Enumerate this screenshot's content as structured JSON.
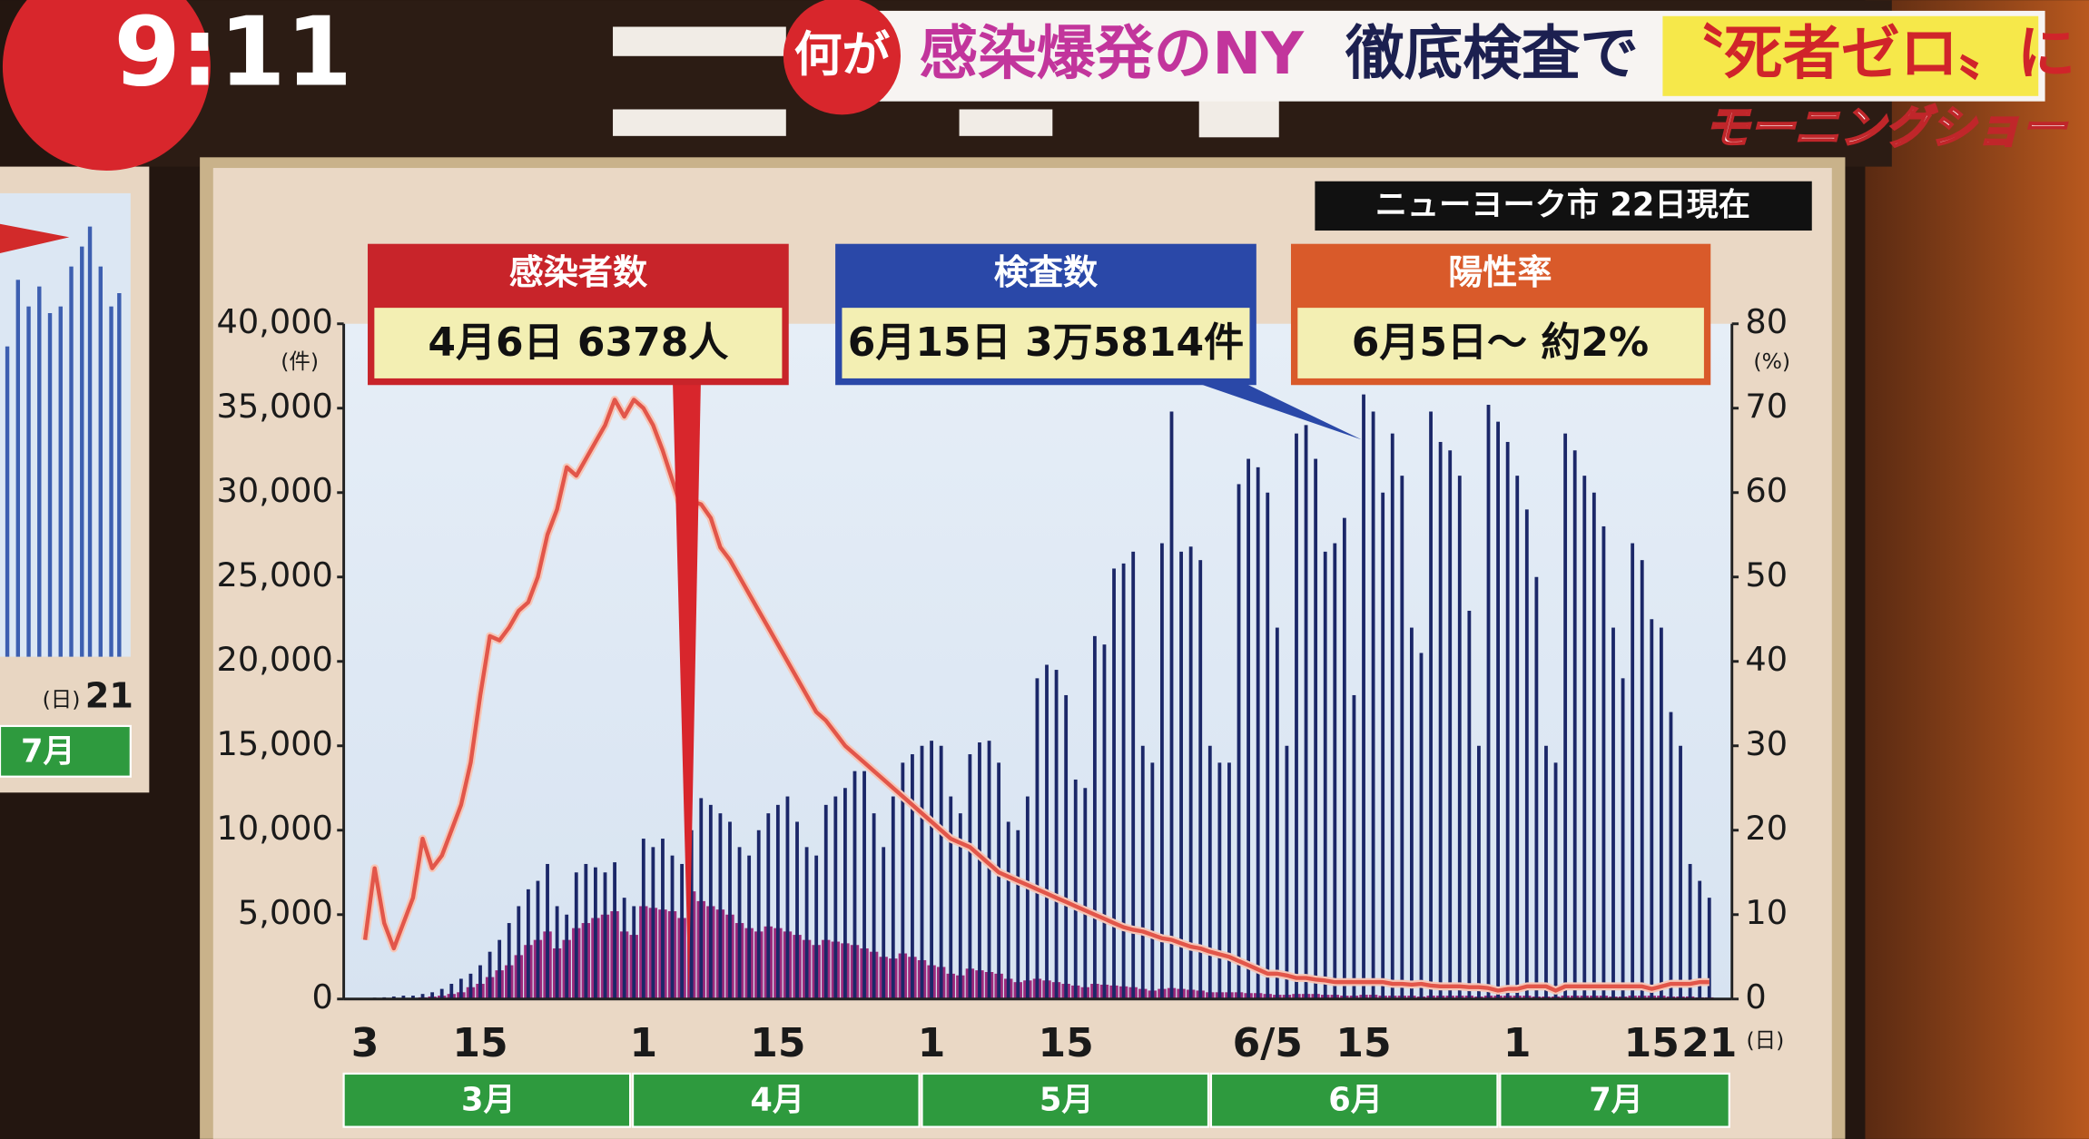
{
  "header": {
    "clock": "9:11",
    "badge": "何が",
    "headline": [
      "感染爆発のNY",
      "徹底検査で",
      "〝死者ゼロ〟に"
    ],
    "show": "モーニングショー"
  },
  "side_panel": {
    "x_unit": "(日)",
    "tick": "21",
    "month": "7月"
  },
  "chart_data": {
    "type": "bar",
    "source_note": "ニューヨーク市 22日現在",
    "y_unit": "(件)",
    "y2_unit": "(%)",
    "x_unit": "(日)",
    "categories": [
      "3",
      null,
      null,
      null,
      null,
      null,
      null,
      null,
      null,
      null,
      null,
      null,
      "15",
      null,
      null,
      null,
      null,
      null,
      null,
      null,
      null,
      null,
      null,
      null,
      null,
      null,
      null,
      null,
      null,
      "1",
      null,
      null,
      null,
      null,
      null,
      null,
      null,
      null,
      null,
      null,
      null,
      null,
      null,
      "15",
      null,
      null,
      null,
      null,
      null,
      null,
      null,
      null,
      null,
      null,
      null,
      null,
      null,
      null,
      null,
      "1",
      null,
      null,
      null,
      null,
      null,
      null,
      null,
      null,
      null,
      null,
      null,
      null,
      null,
      "15",
      null,
      null,
      null,
      null,
      null,
      null,
      null,
      null,
      null,
      null,
      null,
      null,
      null,
      null,
      null,
      null,
      null,
      null,
      null,
      null,
      "6/5",
      null,
      null,
      null,
      null,
      null,
      null,
      null,
      null,
      null,
      "15",
      null,
      null,
      null,
      null,
      null,
      null,
      null,
      null,
      null,
      null,
      null,
      null,
      null,
      null,
      null,
      "1",
      null,
      null,
      null,
      null,
      null,
      null,
      null,
      null,
      null,
      null,
      null,
      null,
      null,
      "15",
      null,
      null,
      null,
      null,
      null,
      "21"
    ],
    "month_labels": [
      "3月",
      "4月",
      "5月",
      "6月",
      "7月"
    ],
    "series": [
      {
        "name": "検査数",
        "type": "bar",
        "color": "#1b2768",
        "values": [
          50,
          80,
          100,
          150,
          200,
          200,
          300,
          400,
          600,
          900,
          1200,
          1500,
          2000,
          2800,
          3500,
          4500,
          5500,
          6500,
          7000,
          8000,
          5500,
          5000,
          7500,
          8000,
          7800,
          7500,
          8100,
          6000,
          5500,
          9500,
          9000,
          9500,
          8500,
          8000,
          10000,
          11900,
          11500,
          11000,
          10500,
          9000,
          8500,
          10000,
          11000,
          11500,
          12000,
          10500,
          9000,
          8500,
          11500,
          12000,
          12500,
          13500,
          13500,
          11000,
          9000,
          12000,
          14000,
          14500,
          15000,
          15300,
          15000,
          12000,
          11000,
          14500,
          15200,
          15300,
          14000,
          10500,
          10000,
          12000,
          19000,
          19800,
          19500,
          18000,
          13000,
          12500,
          21500,
          21000,
          25500,
          25800,
          26500,
          15000,
          14000,
          27000,
          34800,
          26500,
          26800,
          26000,
          15000,
          14000,
          14000,
          30500,
          32000,
          31500,
          30000,
          22000,
          15000,
          33500,
          34000,
          32000,
          26500,
          27000,
          28500,
          18000,
          35814,
          34800,
          30000,
          33500,
          31000,
          22000,
          20500,
          34800,
          33000,
          32500,
          31000,
          23000,
          15000,
          35200,
          34200,
          33000,
          31000,
          29000,
          25000,
          15000,
          14000,
          33500,
          32500,
          31000,
          30000,
          28000,
          22000,
          19000,
          27000,
          26000,
          22500,
          22000,
          17000,
          15000,
          8000,
          7000,
          6000
        ]
      },
      {
        "name": "感染者数",
        "type": "bar",
        "color": "#9c2a7c",
        "values": [
          0,
          0,
          10,
          20,
          30,
          50,
          100,
          150,
          200,
          300,
          400,
          700,
          900,
          1300,
          1700,
          2000,
          2600,
          3200,
          3500,
          4000,
          3000,
          3500,
          4200,
          4500,
          4800,
          5000,
          5200,
          4000,
          3800,
          5500,
          5400,
          5300,
          5200,
          4800,
          6378,
          5800,
          5500,
          5300,
          5000,
          4500,
          4200,
          4000,
          4300,
          4200,
          4000,
          3800,
          3500,
          3200,
          3500,
          3400,
          3300,
          3200,
          3000,
          2800,
          2500,
          2400,
          2700,
          2500,
          2300,
          2000,
          1900,
          1500,
          1400,
          1800,
          1700,
          1600,
          1500,
          1200,
          1000,
          1100,
          1200,
          1100,
          1000,
          900,
          800,
          700,
          900,
          850,
          800,
          750,
          700,
          600,
          500,
          600,
          650,
          600,
          550,
          500,
          400,
          400,
          400,
          400,
          350,
          350,
          300,
          250,
          250,
          300,
          300,
          300,
          250,
          250,
          200,
          200,
          250,
          250,
          200,
          200,
          200,
          200,
          150,
          200,
          200,
          200,
          200,
          200,
          150,
          200,
          200,
          200,
          200,
          200,
          150,
          150,
          150,
          200,
          200,
          200,
          200,
          200,
          150,
          150,
          200,
          200,
          200,
          200,
          150,
          150,
          150,
          100,
          100
        ]
      },
      {
        "name": "陽性率",
        "type": "line",
        "axis": "y2",
        "color": "#e2564a",
        "values": [
          7,
          15.5,
          9,
          6,
          9,
          12,
          19,
          15.5,
          17,
          20,
          23,
          28,
          36,
          43,
          42.5,
          44,
          46,
          47,
          50,
          55,
          58,
          63,
          62,
          64,
          66,
          68,
          71,
          69,
          71,
          70,
          68,
          65,
          61.5,
          58,
          59,
          58.6,
          57,
          53.5,
          52,
          50,
          48,
          46,
          44,
          42,
          40,
          38,
          36,
          34,
          33,
          31.5,
          30,
          29,
          28,
          27,
          26,
          25,
          24,
          23,
          22,
          21,
          20,
          19,
          18.5,
          18,
          17,
          16,
          15,
          14.5,
          14,
          13.5,
          13,
          12.5,
          12,
          11.5,
          11,
          10.5,
          10,
          9.5,
          9,
          8.5,
          8.2,
          8,
          7.6,
          7.2,
          7,
          6.6,
          6.2,
          6,
          5.6,
          5.3,
          5,
          4.5,
          4,
          3.5,
          3,
          3,
          2.8,
          2.5,
          2.5,
          2.3,
          2.2,
          2,
          2,
          2,
          2,
          2,
          2,
          1.8,
          1.8,
          1.7,
          1.8,
          1.6,
          1.5,
          1.5,
          1.5,
          1.4,
          1.4,
          1.3,
          1,
          1.2,
          1.2,
          1.5,
          1.5,
          1.5,
          1,
          1.5,
          1.5,
          1.5,
          1.5,
          1.5,
          1.5,
          1.5,
          1.5,
          1.5,
          1.2,
          1.5,
          1.8,
          1.8,
          1.8,
          2,
          2
        ]
      }
    ],
    "annotations": [
      "4月6日 6378人",
      "6月15日 3万5814件",
      "6月5日～ 約2%"
    ],
    "ylim": [
      0,
      40000
    ],
    "yticks": [
      0,
      {
        "value": 5000,
        "label": "5,000"
      },
      {
        "value": 10000,
        "label": "10,000"
      },
      {
        "value": 15000,
        "label": "15,000"
      },
      {
        "value": 20000,
        "label": "20,000"
      },
      {
        "value": 25000,
        "label": "25,000"
      },
      {
        "value": 30000,
        "label": "30,000"
      },
      {
        "value": 35000,
        "label": "35,000"
      },
      {
        "value": 40000,
        "label": "40,000"
      }
    ],
    "y2lim": [
      0,
      80
    ],
    "y2ticks": [
      0,
      10,
      20,
      30,
      40,
      50,
      60,
      70,
      80
    ],
    "grid": false
  }
}
